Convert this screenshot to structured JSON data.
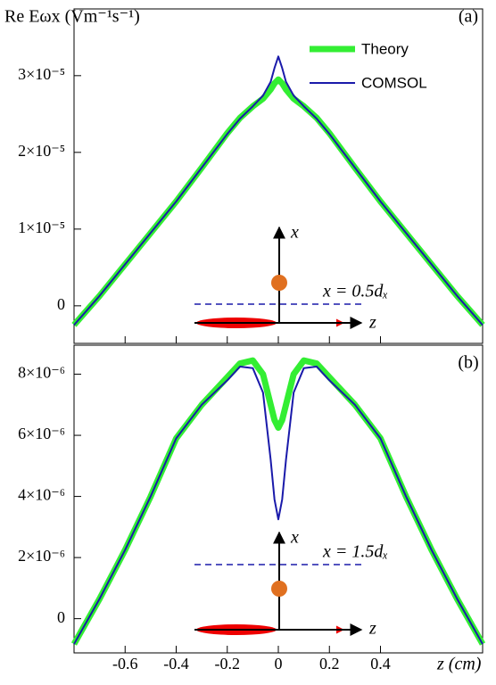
{
  "chart_data": [
    {
      "type": "line",
      "ylabel": "Re Eωx (Vm⁻¹s⁻¹)",
      "annotations": [
        "(a)",
        "x",
        "z",
        "x = 0.5dₓ"
      ],
      "x": [
        -0.8,
        -0.7,
        -0.6,
        -0.5,
        -0.4,
        -0.3,
        -0.2,
        -0.15,
        -0.1,
        -0.06,
        -0.03,
        -0.015,
        0,
        0.015,
        0.03,
        0.06,
        0.1,
        0.15,
        0.2,
        0.3,
        0.4,
        0.5,
        0.6,
        0.7,
        0.8
      ],
      "series": [
        {
          "name": "Theory",
          "color": "#33ee33",
          "values": [
            -2.5e-06,
            1.3e-06,
            5.4e-06,
            9.5e-06,
            1.36e-05,
            1.8e-05,
            2.25e-05,
            2.45e-05,
            2.6e-05,
            2.7e-05,
            2.82e-05,
            2.9e-05,
            2.95e-05,
            2.9e-05,
            2.82e-05,
            2.7e-05,
            2.6e-05,
            2.45e-05,
            2.25e-05,
            1.8e-05,
            1.36e-05,
            9.5e-06,
            5.4e-06,
            1.3e-06,
            -2.5e-06
          ]
        },
        {
          "name": "COMSOL",
          "color": "#1a1aaa",
          "values": [
            -2.5e-06,
            1.3e-06,
            5.4e-06,
            9.5e-06,
            1.36e-05,
            1.8e-05,
            2.24e-05,
            2.44e-05,
            2.6e-05,
            2.74e-05,
            2.92e-05,
            3.1e-05,
            3.25e-05,
            3.1e-05,
            2.92e-05,
            2.74e-05,
            2.6e-05,
            2.44e-05,
            2.24e-05,
            1.8e-05,
            1.36e-05,
            9.5e-06,
            5.4e-06,
            1.3e-06,
            -2.5e-06
          ]
        }
      ],
      "xlim": [
        -0.8,
        0.8
      ],
      "ylim": [
        -4.9e-06,
        3.87e-05
      ],
      "yticks": [
        0,
        {
          "value": 1e-05,
          "label": "1×10⁻⁵"
        },
        {
          "value": 2e-05,
          "label": "2×10⁻⁵"
        },
        {
          "value": 3e-05,
          "label": "3×10⁻⁵"
        }
      ],
      "legend": "upper right"
    },
    {
      "type": "line",
      "xlabel": "z (cm)",
      "annotations": [
        "(b)",
        "x",
        "z",
        "x = 1.5dₓ"
      ],
      "x": [
        -0.8,
        -0.7,
        -0.6,
        -0.5,
        -0.4,
        -0.3,
        -0.2,
        -0.15,
        -0.1,
        -0.06,
        -0.03,
        -0.015,
        0,
        0.015,
        0.03,
        0.06,
        0.1,
        0.15,
        0.2,
        0.3,
        0.4,
        0.5,
        0.6,
        0.7,
        0.8
      ],
      "series": [
        {
          "color": "#33ee33",
          "values": [
            -8.3e-07,
            6.5e-07,
            2.25e-06,
            4e-06,
            5.9e-06,
            7e-06,
            7.9e-06,
            8.35e-06,
            8.45e-06,
            8e-06,
            7e-06,
            6.5e-06,
            6.25e-06,
            6.5e-06,
            7e-06,
            8e-06,
            8.45e-06,
            8.35e-06,
            7.9e-06,
            7e-06,
            5.9e-06,
            4e-06,
            2.25e-06,
            6.5e-07,
            -8.3e-07
          ]
        },
        {
          "color": "#1a1aaa",
          "values": [
            -8.3e-07,
            6.5e-07,
            2.25e-06,
            4e-06,
            5.9e-06,
            7e-06,
            7.8e-06,
            8.25e-06,
            8.2e-06,
            7.4e-06,
            5.2e-06,
            3.9e-06,
            3.25e-06,
            3.9e-06,
            5.2e-06,
            7.4e-06,
            8.2e-06,
            8.25e-06,
            7.8e-06,
            7e-06,
            5.9e-06,
            4e-06,
            2.25e-06,
            6.5e-07,
            -8.3e-07
          ]
        }
      ],
      "xlim": [
        -0.8,
        0.8
      ],
      "xticks": [
        -0.6,
        -0.4,
        -0.2,
        0,
        0.2,
        0.4
      ],
      "ylim": [
        -1.12e-06,
        8.95e-06
      ],
      "yticks": [
        0,
        {
          "value": 2e-06,
          "label": "2×10⁻⁶"
        },
        {
          "value": 4e-06,
          "label": "4×10⁻⁶"
        },
        {
          "value": 6e-06,
          "label": "6×10⁻⁶"
        },
        {
          "value": 8e-06,
          "label": "8×10⁻⁶"
        }
      ]
    }
  ]
}
